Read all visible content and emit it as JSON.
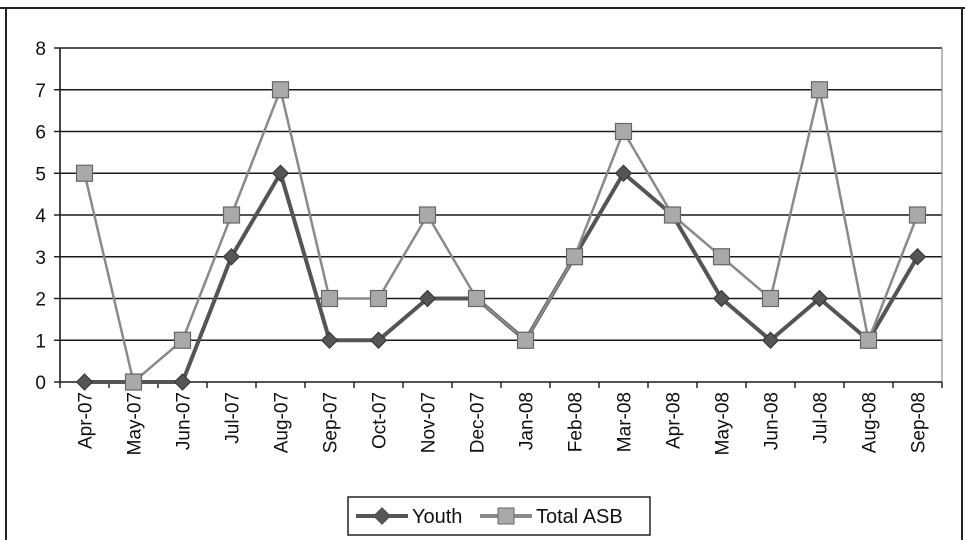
{
  "chart_data": {
    "type": "line",
    "title": "",
    "xlabel": "",
    "ylabel": "",
    "categories": [
      "Apr-07",
      "May-07",
      "Jun-07",
      "Jul-07",
      "Aug-07",
      "Sep-07",
      "Oct-07",
      "Nov-07",
      "Dec-07",
      "Jan-08",
      "Feb-08",
      "Mar-08",
      "Apr-08",
      "May-08",
      "Jun-08",
      "Jul-08",
      "Aug-08",
      "Sep-08"
    ],
    "ylim": [
      0,
      8
    ],
    "yticks": [
      0,
      1,
      2,
      3,
      4,
      5,
      6,
      7,
      8
    ],
    "grid": true,
    "legend_position": "bottom",
    "series": [
      {
        "name": "Youth",
        "marker": "diamond",
        "color": "#555555",
        "values": [
          0,
          0,
          0,
          3,
          5,
          1,
          1,
          2,
          2,
          1,
          3,
          5,
          4,
          2,
          1,
          2,
          1,
          3
        ]
      },
      {
        "name": "Total ASB",
        "marker": "square",
        "color": "#8a8a8a",
        "values": [
          5,
          0,
          1,
          4,
          7,
          2,
          2,
          4,
          2,
          1,
          3,
          6,
          4,
          3,
          2,
          7,
          1,
          4
        ]
      }
    ]
  }
}
